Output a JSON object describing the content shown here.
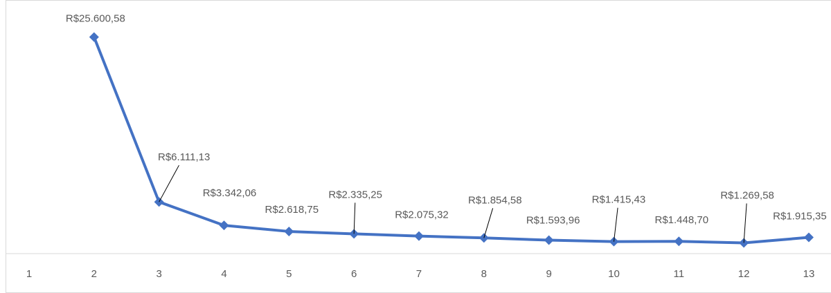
{
  "chart_data": {
    "type": "line",
    "categories": [
      "1",
      "2",
      "3",
      "4",
      "5",
      "6",
      "7",
      "8",
      "9",
      "10",
      "11",
      "12",
      "13"
    ],
    "series": [
      {
        "color": "#4472c4",
        "values": [
          null,
          25600.58,
          6111.13,
          3342.06,
          2618.75,
          2335.25,
          2075.32,
          1854.58,
          1593.96,
          1415.43,
          1448.7,
          1269.58,
          1915.35
        ],
        "value_labels": [
          null,
          "R$25.600,58",
          "R$6.111,13",
          "R$3.342,06",
          "R$2.618,75",
          "R$2.335,25",
          "R$2.075,32",
          "R$1.854,58",
          "R$1.593,96",
          "R$1.415,43",
          "R$1.448,70",
          "R$1.269,58",
          "R$1.915,35"
        ]
      }
    ],
    "ylim": [
      0,
      29000
    ]
  }
}
